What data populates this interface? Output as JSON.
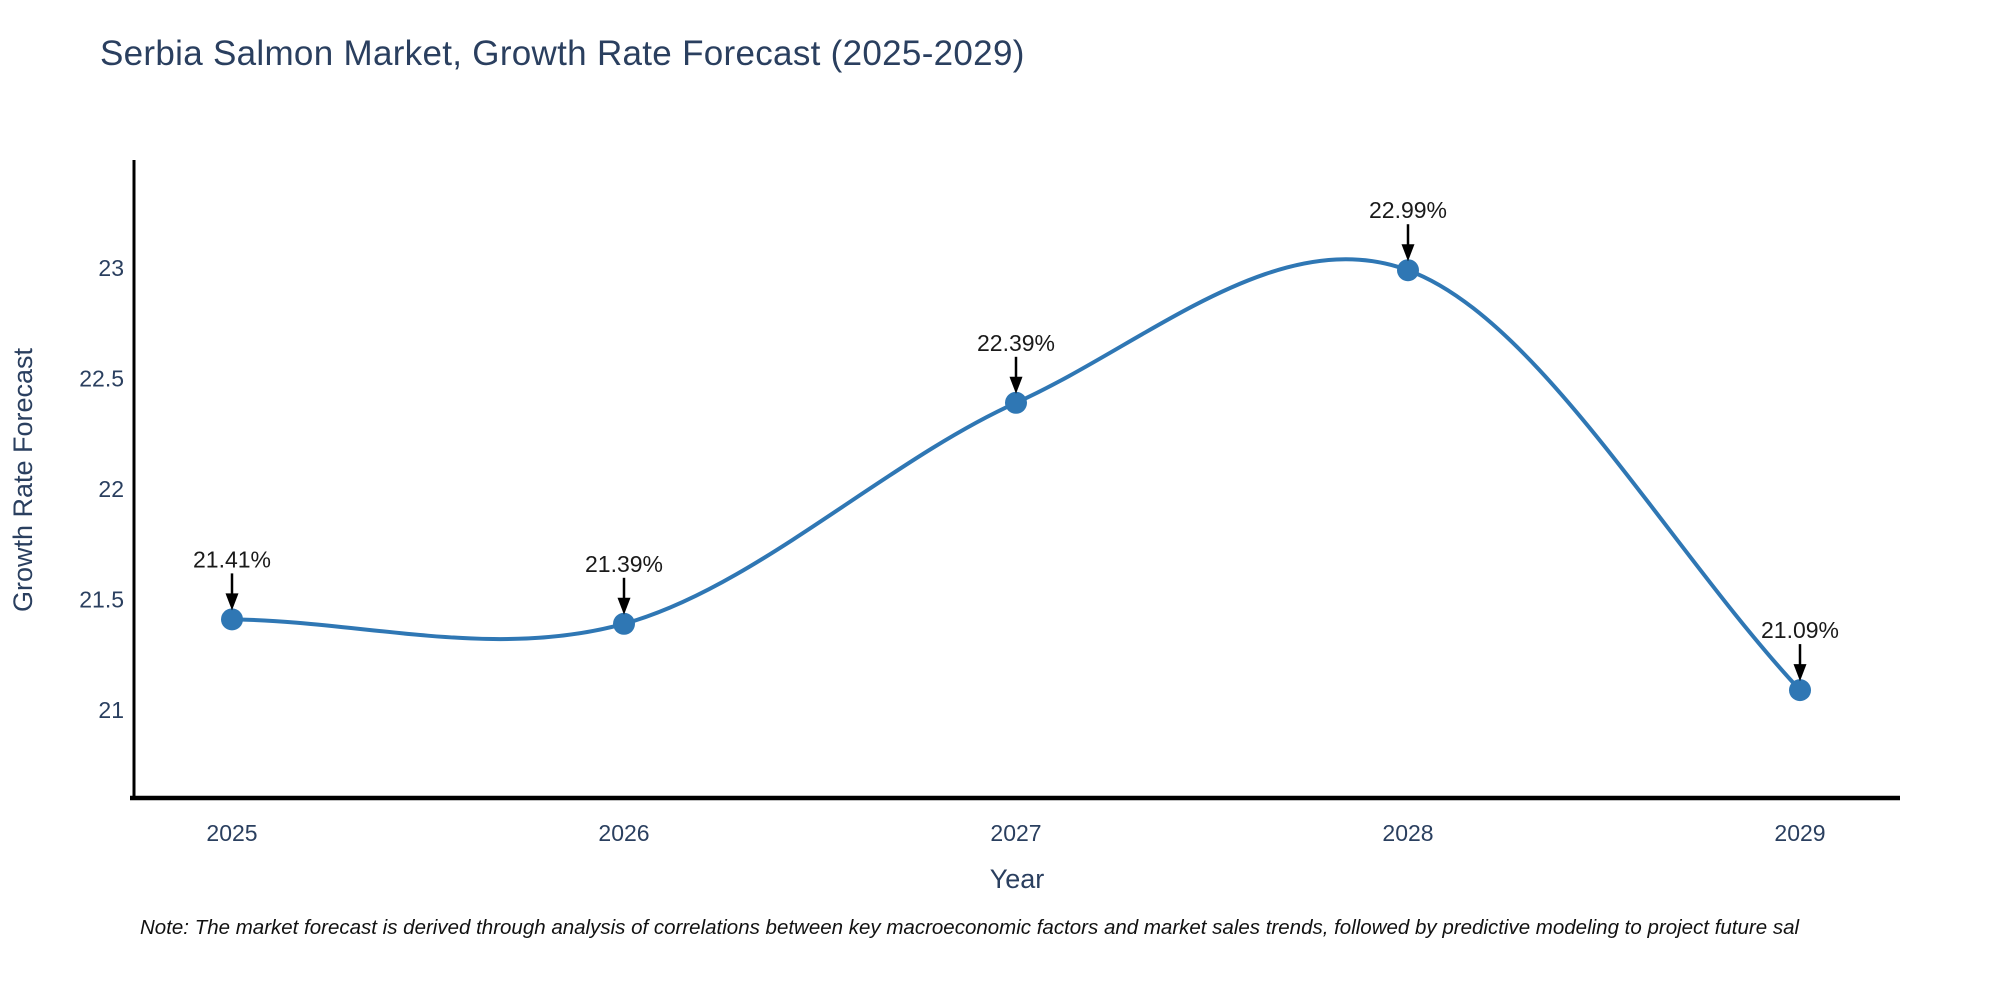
{
  "chart_data": {
    "type": "line",
    "title": "Serbia Salmon Market, Growth Rate Forecast (2025-2029)",
    "xlabel": "Year",
    "ylabel": "Growth Rate Forecast",
    "x": [
      2025,
      2026,
      2027,
      2028,
      2029
    ],
    "values": [
      21.41,
      21.39,
      22.39,
      22.99,
      21.09
    ],
    "point_labels": [
      "21.41%",
      "21.39%",
      "22.39%",
      "22.99%",
      "21.09%"
    ],
    "xticks": [
      "2025",
      "2026",
      "2027",
      "2028",
      "2029"
    ],
    "yticks": [
      21,
      21.5,
      22,
      22.5,
      23
    ],
    "xlim": [
      2024.75,
      2029.26
    ],
    "ylim": [
      20.6,
      23.49
    ],
    "grid": false,
    "legend": false,
    "curve": "spline",
    "line_color": "#2f77b4",
    "marker_color": "#2f77b4",
    "axis_color": "#000000",
    "text_color": "#2a3f5f",
    "annotation_color": "#1a1a1a"
  },
  "note": "Note: The market forecast is derived through analysis of correlations between key macroeconomic factors and market sales trends, followed by predictive modeling to project future sal"
}
